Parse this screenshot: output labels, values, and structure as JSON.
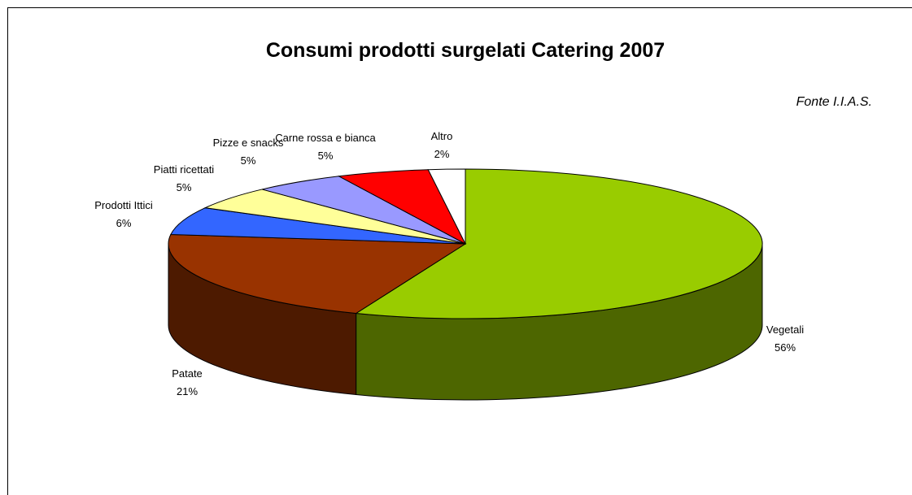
{
  "chart_data": {
    "type": "pie3d",
    "title": "Consumi prodotti surgelati Catering 2007",
    "annotation": "Fonte I.I.A.S.",
    "categories": [
      "Vegetali",
      "Patate",
      "Prodotti Ittici",
      "Piatti ricettati",
      "Pizze e snacks",
      "Carne rossa e bianca",
      "Altro"
    ],
    "values": [
      56,
      21,
      6,
      5,
      5,
      5,
      2
    ],
    "value_labels": [
      "56%",
      "21%",
      "6%",
      "5%",
      "5%",
      "5%",
      "2%"
    ],
    "colors": [
      "#99cc00",
      "#993300",
      "#3366ff",
      "#ffff99",
      "#9999ff",
      "#ff0000",
      "#ffffff"
    ]
  }
}
